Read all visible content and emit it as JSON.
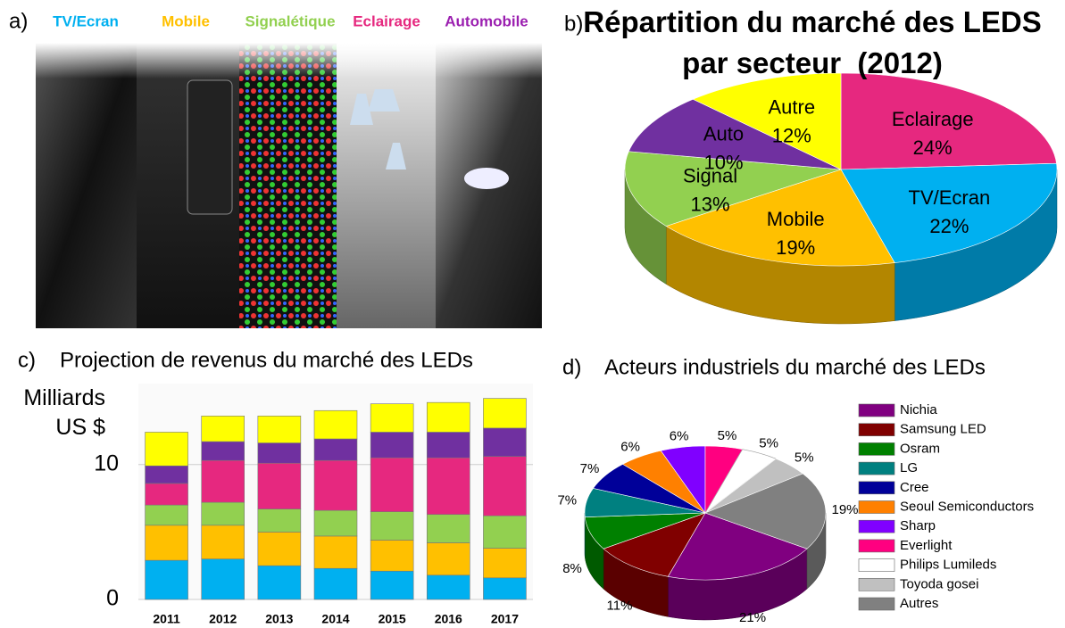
{
  "panel_a": {
    "label": "a)",
    "captions": [
      "TV/Ecran",
      "Mobile",
      "Signalétique",
      "Eclairage",
      "Automobile"
    ],
    "colors": [
      "#00b0f0",
      "#ffc000",
      "#92d050",
      "#e6287f",
      "#9b1fb0"
    ]
  },
  "chart_data": [
    {
      "type": "pie",
      "panel_label": "b)",
      "title": "Répartition du marché des LEDS par secteur  (2012)",
      "categories": [
        "Eclairage",
        "TV/Ecran",
        "Mobile",
        "Signal",
        "Auto",
        "Autre"
      ],
      "values": [
        24,
        22,
        19,
        13,
        10,
        12
      ],
      "value_labels": [
        "24%",
        "22%",
        "19%",
        "13%",
        "10%",
        "12%"
      ],
      "colors": [
        "#e6287f",
        "#00b0f0",
        "#ffc000",
        "#92d050",
        "#7030a0",
        "#ffff00"
      ]
    },
    {
      "type": "bar",
      "panel_label": "c)",
      "title": "Projection de revenus du marché des LEDs",
      "y_label": "Milliards US $",
      "categories": [
        "2011",
        "2012",
        "2013",
        "2014",
        "2015",
        "2016",
        "2017"
      ],
      "series": [
        {
          "color": "#00b0f0",
          "values": [
            2.9,
            3.0,
            2.5,
            2.3,
            2.1,
            1.8,
            1.6
          ]
        },
        {
          "color": "#ffc000",
          "values": [
            2.6,
            2.5,
            2.5,
            2.4,
            2.3,
            2.4,
            2.2
          ]
        },
        {
          "color": "#92d050",
          "values": [
            1.5,
            1.7,
            1.7,
            1.9,
            2.1,
            2.1,
            2.4
          ]
        },
        {
          "color": "#e6287f",
          "values": [
            1.6,
            3.1,
            3.4,
            3.7,
            4.0,
            4.2,
            4.4
          ]
        },
        {
          "color": "#7030a0",
          "values": [
            1.3,
            1.4,
            1.5,
            1.6,
            1.9,
            1.9,
            2.1
          ]
        },
        {
          "color": "#ffff00",
          "values": [
            2.5,
            1.9,
            2.0,
            2.1,
            2.1,
            2.2,
            2.2
          ]
        }
      ],
      "ylim": [
        0,
        16
      ],
      "yticks": [
        0,
        10
      ],
      "grid": true
    },
    {
      "type": "pie",
      "panel_label": "d)",
      "title": "Acteurs industriels du marché des LEDs",
      "categories": [
        "Nichia",
        "Samsung LED",
        "Osram",
        "LG",
        "Cree",
        "Seoul Semiconductors",
        "Sharp",
        "Everlight",
        "Philips Lumileds",
        "Toyoda gosei",
        "Autres"
      ],
      "values": [
        21,
        11,
        8,
        7,
        7,
        6,
        6,
        5,
        5,
        5,
        19
      ],
      "value_labels": [
        "21%",
        "11%",
        "8%",
        "7%",
        "7%",
        "6%",
        "6%",
        "5%",
        "5%",
        "5%",
        "19%"
      ],
      "colors": [
        "#800080",
        "#800000",
        "#008000",
        "#008080",
        "#000099",
        "#ff8000",
        "#8000ff",
        "#ff0080",
        "#ffffff",
        "#c0c0c0",
        "#808080"
      ],
      "legend": true
    }
  ]
}
